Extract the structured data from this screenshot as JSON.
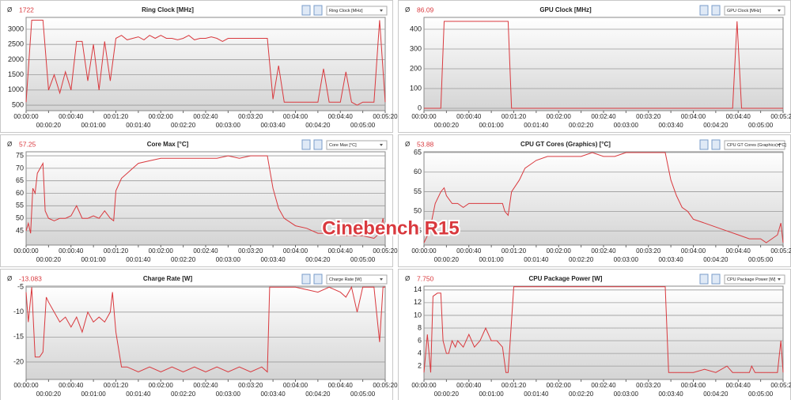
{
  "overlay_text": "Cinebench R15",
  "chart_data": [
    {
      "type": "line",
      "title": "Ring Clock [MHz]",
      "current": "1722",
      "color": "#d9393e",
      "grid": true,
      "x": [
        0,
        5,
        10,
        15,
        20,
        25,
        30,
        35,
        40,
        45,
        50,
        55,
        60,
        65,
        70,
        75,
        80,
        85,
        90,
        95,
        100,
        105,
        110,
        115,
        120,
        125,
        130,
        135,
        140,
        145,
        150,
        155,
        160,
        165,
        170,
        175,
        180,
        185,
        190,
        195,
        200,
        205,
        210,
        215,
        220,
        225,
        230,
        235,
        240,
        245,
        250,
        255,
        260,
        265,
        270,
        275,
        280,
        285,
        290,
        295,
        300,
        305,
        310,
        315,
        320
      ],
      "values": [
        600,
        3300,
        3300,
        3300,
        1000,
        1500,
        900,
        1600,
        1000,
        2600,
        2600,
        1300,
        2500,
        1000,
        2600,
        1300,
        2700,
        2800,
        2650,
        2700,
        2750,
        2650,
        2800,
        2700,
        2800,
        2700,
        2700,
        2650,
        2700,
        2800,
        2650,
        2700,
        2700,
        2750,
        2700,
        2600,
        2700,
        2700,
        2700,
        2700,
        2700,
        2700,
        2700,
        2700,
        700,
        1800,
        600,
        600,
        600,
        600,
        600,
        600,
        600,
        1700,
        600,
        600,
        600,
        1600,
        600,
        500,
        600,
        600,
        600,
        3300,
        600
      ],
      "xlim": [
        0,
        320
      ],
      "ylim": [
        320,
        3390
      ],
      "yticks": [
        500,
        1000,
        1500,
        2000,
        2500,
        3000
      ],
      "xticks": [
        {
          "value": 0,
          "label": "00:00:00"
        },
        {
          "value": 20,
          "label": "00:00:20"
        },
        {
          "value": 40,
          "label": "00:00:40"
        },
        {
          "value": 60,
          "label": "00:01:00"
        },
        {
          "value": 80,
          "label": "00:01:20"
        },
        {
          "value": 100,
          "label": "00:01:40"
        },
        {
          "value": 120,
          "label": "00:02:00"
        },
        {
          "value": 140,
          "label": "00:02:20"
        },
        {
          "value": 160,
          "label": "00:02:40"
        },
        {
          "value": 180,
          "label": "00:03:00"
        },
        {
          "value": 200,
          "label": "00:03:20"
        },
        {
          "value": 220,
          "label": "00:03:40"
        },
        {
          "value": 240,
          "label": "00:04:00"
        },
        {
          "value": 260,
          "label": "00:04:20"
        },
        {
          "value": 280,
          "label": "00:04:40"
        },
        {
          "value": 300,
          "label": "00:05:00"
        },
        {
          "value": 320,
          "label": "00:05:20"
        }
      ]
    },
    {
      "type": "line",
      "title": "GPU Clock [MHz]",
      "current": "86.09",
      "color": "#d9393e",
      "grid": true,
      "x": [
        0,
        15,
        18,
        75,
        78,
        275,
        279,
        283,
        320
      ],
      "values": [
        0,
        0,
        440,
        440,
        0,
        0,
        440,
        0,
        0
      ],
      "xlim": [
        0,
        320
      ],
      "ylim": [
        -12,
        460
      ],
      "yticks": [
        0,
        100,
        200,
        300,
        400
      ],
      "xticks": [
        {
          "value": 0,
          "label": "00:00:00"
        },
        {
          "value": 20,
          "label": "00:00:20"
        },
        {
          "value": 40,
          "label": "00:00:40"
        },
        {
          "value": 60,
          "label": "00:01:00"
        },
        {
          "value": 80,
          "label": "00:01:20"
        },
        {
          "value": 100,
          "label": "00:01:40"
        },
        {
          "value": 120,
          "label": "00:02:00"
        },
        {
          "value": 140,
          "label": "00:02:20"
        },
        {
          "value": 160,
          "label": "00:02:40"
        },
        {
          "value": 180,
          "label": "00:03:00"
        },
        {
          "value": 200,
          "label": "00:03:20"
        },
        {
          "value": 220,
          "label": "00:03:40"
        },
        {
          "value": 240,
          "label": "00:04:00"
        },
        {
          "value": 260,
          "label": "00:04:20"
        },
        {
          "value": 280,
          "label": "00:04:40"
        },
        {
          "value": 300,
          "label": "00:05:00"
        },
        {
          "value": 320,
          "label": "00:05:20"
        }
      ]
    },
    {
      "type": "line",
      "title": "Core Max [°C]",
      "current": "57.25",
      "color": "#d9393e",
      "grid": true,
      "x": [
        0,
        2,
        4,
        6,
        8,
        10,
        15,
        17,
        20,
        25,
        30,
        35,
        40,
        45,
        50,
        55,
        60,
        65,
        70,
        75,
        78,
        80,
        85,
        90,
        95,
        100,
        110,
        120,
        130,
        140,
        150,
        160,
        170,
        180,
        190,
        200,
        210,
        215,
        220,
        225,
        230,
        240,
        250,
        260,
        270,
        280,
        290,
        300,
        310,
        315,
        318,
        320
      ],
      "values": [
        45,
        48,
        44,
        62,
        60,
        68,
        72,
        53,
        50,
        49,
        50,
        50,
        51,
        55,
        50,
        50,
        51,
        50,
        53,
        50,
        49,
        61,
        66,
        68,
        70,
        72,
        73,
        74,
        74,
        74,
        74,
        74,
        74,
        75,
        74,
        75,
        75,
        75,
        62,
        54,
        50,
        47,
        46,
        44,
        44,
        43,
        43,
        43,
        42,
        44,
        50,
        43
      ],
      "xlim": [
        0,
        320
      ],
      "ylim": [
        39.3,
        76.6
      ],
      "yticks": [
        45,
        50,
        55,
        60,
        65,
        70,
        75
      ],
      "xticks": [
        {
          "value": 0,
          "label": "00:00:00"
        },
        {
          "value": 20,
          "label": "00:00:20"
        },
        {
          "value": 40,
          "label": "00:00:40"
        },
        {
          "value": 60,
          "label": "00:01:00"
        },
        {
          "value": 80,
          "label": "00:01:20"
        },
        {
          "value": 100,
          "label": "00:01:40"
        },
        {
          "value": 120,
          "label": "00:02:00"
        },
        {
          "value": 140,
          "label": "00:02:20"
        },
        {
          "value": 160,
          "label": "00:02:40"
        },
        {
          "value": 180,
          "label": "00:03:00"
        },
        {
          "value": 200,
          "label": "00:03:20"
        },
        {
          "value": 220,
          "label": "00:03:40"
        },
        {
          "value": 240,
          "label": "00:04:00"
        },
        {
          "value": 260,
          "label": "00:04:20"
        },
        {
          "value": 280,
          "label": "00:04:40"
        },
        {
          "value": 300,
          "label": "00:05:00"
        },
        {
          "value": 320,
          "label": "00:05:20"
        }
      ]
    },
    {
      "type": "line",
      "title": "CPU GT Cores (Graphics) [°C]",
      "current": "53.88",
      "color": "#d9393e",
      "grid": true,
      "x": [
        0,
        5,
        10,
        15,
        18,
        20,
        25,
        30,
        35,
        40,
        45,
        50,
        55,
        60,
        65,
        70,
        72,
        75,
        78,
        85,
        90,
        95,
        100,
        110,
        120,
        130,
        140,
        150,
        160,
        170,
        180,
        190,
        200,
        210,
        215,
        220,
        225,
        230,
        235,
        240,
        250,
        260,
        270,
        280,
        290,
        300,
        305,
        310,
        315,
        318,
        320
      ],
      "values": [
        42,
        45,
        52,
        55,
        56,
        54,
        52,
        52,
        51,
        52,
        52,
        52,
        52,
        52,
        52,
        52,
        50,
        49,
        55,
        58,
        61,
        62,
        63,
        64,
        64,
        64,
        64,
        65,
        64,
        64,
        65,
        65,
        65,
        65,
        65,
        58,
        54,
        51,
        50,
        48,
        47,
        46,
        45,
        44,
        43,
        43,
        42,
        43,
        44,
        47,
        42
      ],
      "xlim": [
        0,
        320
      ],
      "ylim": [
        41.4,
        65.2
      ],
      "yticks": [
        45,
        50,
        55,
        60,
        65
      ],
      "xticks": [
        {
          "value": 0,
          "label": "00:00:00"
        },
        {
          "value": 20,
          "label": "00:00:20"
        },
        {
          "value": 40,
          "label": "00:00:40"
        },
        {
          "value": 60,
          "label": "00:01:00"
        },
        {
          "value": 80,
          "label": "00:01:20"
        },
        {
          "value": 100,
          "label": "00:01:40"
        },
        {
          "value": 120,
          "label": "00:02:00"
        },
        {
          "value": 140,
          "label": "00:02:20"
        },
        {
          "value": 160,
          "label": "00:02:40"
        },
        {
          "value": 180,
          "label": "00:03:00"
        },
        {
          "value": 200,
          "label": "00:03:20"
        },
        {
          "value": 220,
          "label": "00:03:40"
        },
        {
          "value": 240,
          "label": "00:04:00"
        },
        {
          "value": 260,
          "label": "00:04:20"
        },
        {
          "value": 280,
          "label": "00:04:40"
        },
        {
          "value": 300,
          "label": "00:05:00"
        },
        {
          "value": 320,
          "label": "00:05:20"
        }
      ]
    },
    {
      "type": "line",
      "title": "Charge Rate [W]",
      "current": "-13.083",
      "color": "#d9393e",
      "grid": true,
      "x": [
        0,
        2,
        5,
        8,
        12,
        15,
        18,
        20,
        25,
        30,
        35,
        40,
        45,
        50,
        55,
        60,
        65,
        70,
        75,
        77,
        80,
        85,
        90,
        100,
        110,
        120,
        130,
        140,
        150,
        160,
        170,
        180,
        190,
        200,
        210,
        215,
        217,
        230,
        240,
        250,
        260,
        270,
        280,
        285,
        290,
        295,
        300,
        310,
        315,
        318,
        320
      ],
      "values": [
        -6,
        -12,
        -5,
        -19,
        -19,
        -18,
        -7,
        -8,
        -10,
        -12,
        -11,
        -13,
        -11,
        -14,
        -10,
        -12,
        -11,
        -12,
        -10,
        -6,
        -14,
        -21,
        -21,
        -22,
        -21,
        -22,
        -21,
        -22,
        -21,
        -22,
        -21,
        -22,
        -21,
        -22,
        -21,
        -22,
        -5,
        -5,
        -5,
        -5.5,
        -6,
        -5,
        -6,
        -7,
        -5,
        -10,
        -5,
        -5,
        -16,
        -5,
        -5
      ],
      "xlim": [
        0,
        320
      ],
      "ylim": [
        -23.5,
        -4.8
      ],
      "yticks": [
        -20,
        -15,
        -10,
        -5
      ],
      "xticks": [
        {
          "value": 0,
          "label": "00:00:00"
        },
        {
          "value": 20,
          "label": "00:00:20"
        },
        {
          "value": 40,
          "label": "00:00:40"
        },
        {
          "value": 60,
          "label": "00:01:00"
        },
        {
          "value": 80,
          "label": "00:01:20"
        },
        {
          "value": 100,
          "label": "00:01:40"
        },
        {
          "value": 120,
          "label": "00:02:00"
        },
        {
          "value": 140,
          "label": "00:02:20"
        },
        {
          "value": 160,
          "label": "00:02:40"
        },
        {
          "value": 180,
          "label": "00:03:00"
        },
        {
          "value": 200,
          "label": "00:03:20"
        },
        {
          "value": 220,
          "label": "00:03:40"
        },
        {
          "value": 240,
          "label": "00:04:00"
        },
        {
          "value": 260,
          "label": "00:04:20"
        },
        {
          "value": 280,
          "label": "00:04:40"
        },
        {
          "value": 300,
          "label": "00:05:00"
        },
        {
          "value": 320,
          "label": "00:05:20"
        }
      ]
    },
    {
      "type": "line",
      "title": "CPU Package Power [W]",
      "current": "7.750",
      "color": "#d9393e",
      "grid": true,
      "x": [
        0,
        3,
        6,
        8,
        12,
        15,
        17,
        20,
        22,
        25,
        28,
        30,
        35,
        40,
        45,
        50,
        55,
        60,
        65,
        70,
        73,
        75,
        80,
        100,
        150,
        200,
        215,
        218,
        240,
        250,
        260,
        270,
        275,
        290,
        292,
        295,
        305,
        315,
        318,
        320
      ],
      "values": [
        1,
        7,
        1,
        13,
        13.5,
        13.5,
        6,
        4,
        4,
        6,
        5,
        6,
        5,
        7,
        5,
        6,
        8,
        6,
        6,
        5,
        1,
        1,
        14.5,
        14.5,
        14.5,
        14.5,
        14.5,
        1,
        1,
        1.5,
        1,
        2,
        1,
        1,
        2,
        1,
        1,
        1,
        6,
        1
      ],
      "xlim": [
        0,
        320
      ],
      "ylim": [
        -0.1,
        14.6
      ],
      "yticks": [
        2,
        4,
        6,
        8,
        10,
        12,
        14
      ],
      "xticks": [
        {
          "value": 0,
          "label": "00:00:00"
        },
        {
          "value": 20,
          "label": "00:00:20"
        },
        {
          "value": 40,
          "label": "00:00:40"
        },
        {
          "value": 60,
          "label": "00:01:00"
        },
        {
          "value": 80,
          "label": "00:01:20"
        },
        {
          "value": 100,
          "label": "00:01:40"
        },
        {
          "value": 120,
          "label": "00:02:00"
        },
        {
          "value": 140,
          "label": "00:02:20"
        },
        {
          "value": 160,
          "label": "00:02:40"
        },
        {
          "value": 180,
          "label": "00:03:00"
        },
        {
          "value": 200,
          "label": "00:03:20"
        },
        {
          "value": 220,
          "label": "00:03:40"
        },
        {
          "value": 240,
          "label": "00:04:00"
        },
        {
          "value": 260,
          "label": "00:04:20"
        },
        {
          "value": 280,
          "label": "00:04:40"
        },
        {
          "value": 300,
          "label": "00:05:00"
        },
        {
          "value": 320,
          "label": "00:05:20"
        }
      ]
    }
  ]
}
